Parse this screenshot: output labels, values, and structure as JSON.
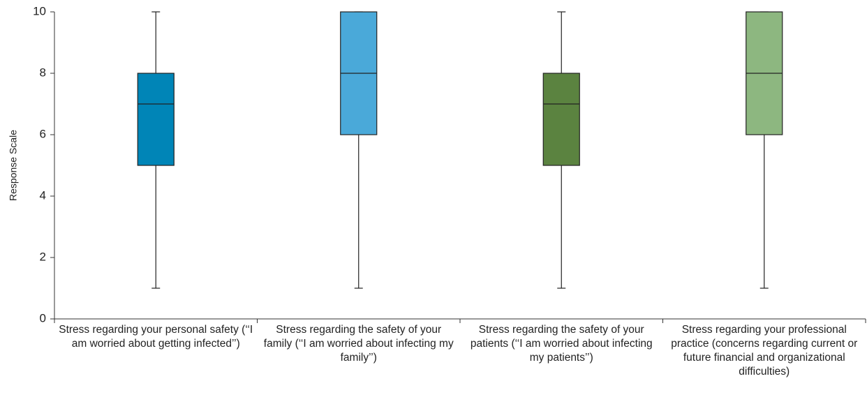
{
  "chart_data": {
    "type": "box",
    "ylabel": "Response Scale",
    "categories": [
      "Stress regarding your personal safety (‘‘I am worried about getting infected’’)",
      "Stress regarding the safety of your family (‘‘I am worried about infecting my family’’)",
      "Stress regarding the safety of your patients (‘‘I am worried about infecting my patients’’)",
      "Stress regarding your professional practice (concerns regarding current or future financial and organizational difficulties)"
    ],
    "boxes": [
      {
        "min": 1,
        "q1": 5,
        "median": 7,
        "q3": 8,
        "max": 10,
        "color": "#0085b7"
      },
      {
        "min": 1,
        "q1": 6,
        "median": 8,
        "q3": 10,
        "max": 10,
        "color": "#4aa9d9"
      },
      {
        "min": 1,
        "q1": 5,
        "median": 7,
        "q3": 8,
        "max": 10,
        "color": "#5b8340"
      },
      {
        "min": 1,
        "q1": 6,
        "median": 8,
        "q3": 10,
        "max": 10,
        "color": "#8db780"
      }
    ],
    "ylim": [
      0,
      10
    ],
    "yticks": [
      0,
      2,
      4,
      6,
      8,
      10
    ]
  }
}
